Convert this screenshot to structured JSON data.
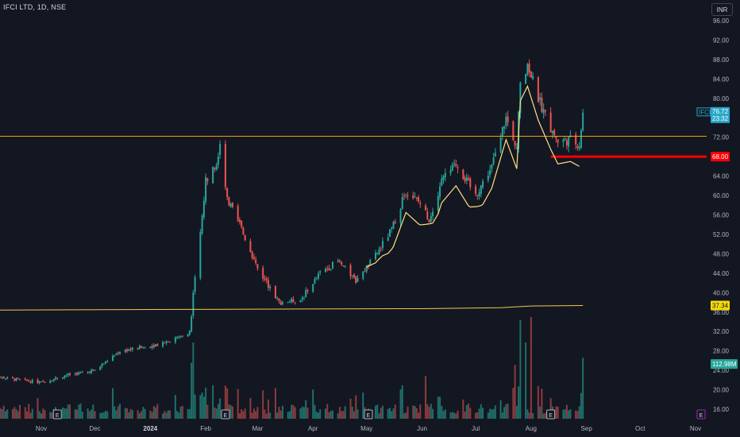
{
  "header": {
    "symbol_line": "IFCI LTD, 1D, NSE",
    "currency": "INR"
  },
  "colors": {
    "background": "#131722",
    "up": "#26a69a",
    "down": "#ef5350",
    "up_vol": "#1f6f6a",
    "down_vol": "#8c3b3e",
    "resistance_line": "#ff9800",
    "support_line": "#ff0000",
    "vwap_line": "#ffe082",
    "ma_line": "#f2c94c",
    "price_tag": "#2aa7c9",
    "earn_icon": "#9c27b0"
  },
  "chart_data": {
    "type": "candlestick",
    "title": "IFCI LTD, 1D, NSE",
    "ylim": [
      14,
      96
    ],
    "y_ticks": [
      16,
      20,
      24,
      28,
      32,
      36,
      40,
      44,
      48,
      52,
      56,
      60,
      64,
      68,
      72,
      76,
      80,
      84,
      88,
      92,
      96
    ],
    "y_tick_labels": [
      "16.00",
      "20.00",
      "24.00",
      "28.00",
      "32.00",
      "36.00",
      "40.00",
      "44.00",
      "48.00",
      "52.00",
      "56.00",
      "60.00",
      "64.00",
      "68.00",
      "72.00",
      "76.00",
      "80.00",
      "84.00",
      "88.00",
      "92.00",
      "96.00"
    ],
    "x_labels": [
      {
        "label": "Nov",
        "date": "2023-11-01",
        "bold": false
      },
      {
        "label": "Dec",
        "date": "2023-12-01",
        "bold": false
      },
      {
        "label": "2024",
        "date": "2024-01-01",
        "bold": true
      },
      {
        "label": "Feb",
        "date": "2024-02-01",
        "bold": false
      },
      {
        "label": "Mar",
        "date": "2024-03-01",
        "bold": false
      },
      {
        "label": "Apr",
        "date": "2024-04-01",
        "bold": false
      },
      {
        "label": "May",
        "date": "2024-05-01",
        "bold": false
      },
      {
        "label": "Jun",
        "date": "2024-06-01",
        "bold": false
      },
      {
        "label": "Jul",
        "date": "2024-07-01",
        "bold": false
      },
      {
        "label": "Aug",
        "date": "2024-08-01",
        "bold": false
      },
      {
        "label": "Sep",
        "date": "2024-09-01",
        "bold": false
      },
      {
        "label": "Oct",
        "date": "2024-10-01",
        "bold": false
      },
      {
        "label": "Nov",
        "date": "2024-11-01",
        "bold": false
      }
    ],
    "price_path": [
      [
        "2023-10-02",
        23.0
      ],
      [
        "2023-10-20",
        22.0
      ],
      [
        "2023-11-01",
        21.5
      ],
      [
        "2023-11-15",
        23.0
      ],
      [
        "2023-12-01",
        24.0
      ],
      [
        "2023-12-15",
        28.0
      ],
      [
        "2024-01-01",
        29.0
      ],
      [
        "2024-01-15",
        30.5
      ],
      [
        "2024-01-23",
        32.0
      ],
      [
        "2024-01-24",
        35.0
      ],
      [
        "2024-01-25",
        40.5
      ],
      [
        "2024-01-29",
        52.0
      ],
      [
        "2024-02-01",
        63.0
      ],
      [
        "2024-02-07",
        67.0
      ],
      [
        "2024-02-09",
        71.0
      ],
      [
        "2024-02-13",
        59.0
      ],
      [
        "2024-02-20",
        54.0
      ],
      [
        "2024-03-01",
        45.0
      ],
      [
        "2024-03-13",
        38.0
      ],
      [
        "2024-03-25",
        38.5
      ],
      [
        "2024-04-05",
        44.0
      ],
      [
        "2024-04-15",
        46.5
      ],
      [
        "2024-04-25",
        42.5
      ],
      [
        "2024-05-05",
        47.0
      ],
      [
        "2024-05-15",
        53.0
      ],
      [
        "2024-05-23",
        61.0
      ],
      [
        "2024-06-01",
        58.0
      ],
      [
        "2024-06-05",
        55.0
      ],
      [
        "2024-06-12",
        63.0
      ],
      [
        "2024-06-20",
        66.5
      ],
      [
        "2024-07-01",
        60.0
      ],
      [
        "2024-07-10",
        66.0
      ],
      [
        "2024-07-18",
        76.0
      ],
      [
        "2024-07-24",
        70.0
      ],
      [
        "2024-07-26",
        84.0
      ],
      [
        "2024-07-30",
        87.0
      ],
      [
        "2024-08-05",
        80.0
      ],
      [
        "2024-08-12",
        74.0
      ],
      [
        "2024-08-16",
        71.0
      ],
      [
        "2024-08-23",
        71.5
      ],
      [
        "2024-08-28",
        70.5
      ],
      [
        "2024-08-30",
        76.72
      ]
    ],
    "volume_spikes": [
      {
        "date": "2024-01-24",
        "value": 0.55
      },
      {
        "date": "2024-01-25",
        "value": 0.75
      },
      {
        "date": "2024-06-03",
        "value": 0.42
      },
      {
        "date": "2024-07-23",
        "value": 0.53
      },
      {
        "date": "2024-07-26",
        "value": 0.97
      },
      {
        "date": "2024-07-29",
        "value": 0.75
      },
      {
        "date": "2024-08-01",
        "value": 1.0
      },
      {
        "date": "2024-08-30",
        "value": 0.6
      }
    ],
    "earnings_dates": [
      "2023-11-10",
      "2024-02-12",
      "2024-05-02",
      "2024-08-12"
    ],
    "earnings_label": "E",
    "resistance_level": 72.2,
    "support_level": 68.0,
    "support_start": "2024-08-12",
    "vwap_start": "2024-05-01",
    "vwap_end": "2024-08-28",
    "ma_values": [
      [
        "2023-10-01",
        36.4
      ],
      [
        "2024-01-20",
        36.55
      ],
      [
        "2024-06-01",
        36.7
      ],
      [
        "2024-07-15",
        36.9
      ],
      [
        "2024-08-01",
        37.25
      ],
      [
        "2024-08-30",
        37.34
      ]
    ],
    "last_price": "76.72",
    "countdown": "23:32",
    "symbol_tag": "IFCI",
    "level_tag": "68.00",
    "ma_tag": "37.34",
    "volume_tag": "112.98M"
  }
}
